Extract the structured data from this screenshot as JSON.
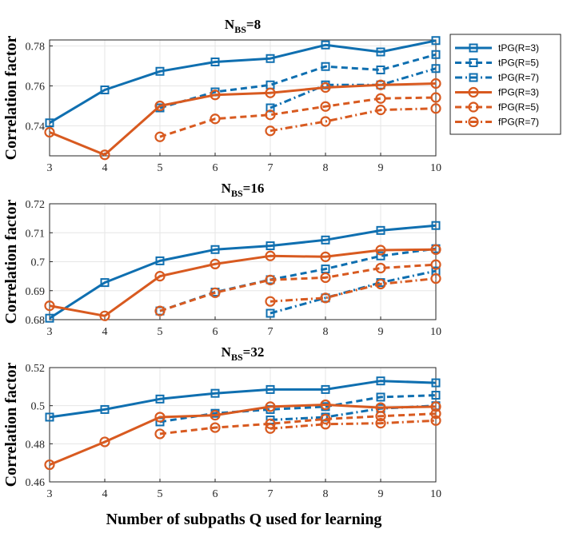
{
  "colors": {
    "tPG": "#0f6fb0",
    "fPG": "#d85a20",
    "grid": "#e6e6e6",
    "axis": "#262626"
  },
  "legend": {
    "placement": "right",
    "entries": [
      {
        "label": "tPG(R=3)",
        "family": "tPG",
        "style": "solid",
        "marker": "square"
      },
      {
        "label": "tPG(R=5)",
        "family": "tPG",
        "style": "dashed",
        "marker": "square"
      },
      {
        "label": "tPG(R=7)",
        "family": "tPG",
        "style": "dashdot",
        "marker": "square"
      },
      {
        "label": "fPG(R=3)",
        "family": "fPG",
        "style": "solid",
        "marker": "circle"
      },
      {
        "label": "fPG(R=5)",
        "family": "fPG",
        "style": "dashed",
        "marker": "circle"
      },
      {
        "label": "fPG(R=7)",
        "family": "fPG",
        "style": "dashdot",
        "marker": "circle"
      }
    ]
  },
  "shared_xlabel": "Number of subpaths Q used for learning",
  "chart_data": [
    {
      "type": "line",
      "title_main": "N",
      "title_sub": "BS",
      "title_rest": "=8",
      "ylabel": "Correlation factor",
      "xlabel": "",
      "xlim": [
        3,
        10
      ],
      "ylim": [
        0.725,
        0.783
      ],
      "xticks": [
        "3",
        "4",
        "5",
        "6",
        "7",
        "8",
        "9",
        "10"
      ],
      "yticks": [
        0.74,
        0.76,
        0.78
      ],
      "ytick_labels": [
        "0.74",
        "0.76",
        "0.78"
      ],
      "grid": true,
      "series": [
        {
          "name": "tPG(R=3)",
          "x": [
            3,
            4,
            5,
            6,
            7,
            8,
            9,
            10
          ],
          "values": [
            0.7415,
            0.758,
            0.7673,
            0.772,
            0.7737,
            0.7805,
            0.777,
            0.7827
          ]
        },
        {
          "name": "tPG(R=5)",
          "x": [
            5,
            6,
            7,
            8,
            9,
            10
          ],
          "values": [
            0.749,
            0.757,
            0.7605,
            0.7697,
            0.768,
            0.7757
          ]
        },
        {
          "name": "tPG(R=7)",
          "x": [
            7,
            8,
            9,
            10
          ],
          "values": [
            0.749,
            0.7605,
            0.7605,
            0.7687
          ]
        },
        {
          "name": "fPG(R=3)",
          "x": [
            3,
            4,
            5,
            6,
            7,
            8,
            9,
            10
          ],
          "values": [
            0.7368,
            0.7255,
            0.75,
            0.7555,
            0.7565,
            0.7592,
            0.7605,
            0.7612
          ]
        },
        {
          "name": "fPG(R=5)",
          "x": [
            5,
            6,
            7,
            8,
            9,
            10
          ],
          "values": [
            0.7345,
            0.7435,
            0.7455,
            0.7497,
            0.7537,
            0.7542
          ]
        },
        {
          "name": "fPG(R=7)",
          "x": [
            7,
            8,
            9,
            10
          ],
          "values": [
            0.7375,
            0.7422,
            0.748,
            0.7487
          ]
        }
      ]
    },
    {
      "type": "line",
      "title_main": "N",
      "title_sub": "BS",
      "title_rest": "=16",
      "ylabel": "Correlation factor",
      "xlabel": "",
      "xlim": [
        3,
        10
      ],
      "ylim": [
        0.68,
        0.72
      ],
      "xticks": [
        "3",
        "4",
        "5",
        "6",
        "7",
        "8",
        "9",
        "10"
      ],
      "yticks": [
        0.68,
        0.69,
        0.7,
        0.71,
        0.72
      ],
      "ytick_labels": [
        "0.68",
        "0.69",
        "0.7",
        "0.71",
        "0.72"
      ],
      "grid": true,
      "series": [
        {
          "name": "tPG(R=3)",
          "x": [
            3,
            4,
            5,
            6,
            7,
            8,
            9,
            10
          ],
          "values": [
            0.6805,
            0.6928,
            0.7003,
            0.7042,
            0.7055,
            0.7075,
            0.7108,
            0.7125
          ]
        },
        {
          "name": "tPG(R=5)",
          "x": [
            5,
            6,
            7,
            8,
            9,
            10
          ],
          "values": [
            0.683,
            0.6895,
            0.6938,
            0.6975,
            0.702,
            0.7045
          ]
        },
        {
          "name": "tPG(R=7)",
          "x": [
            7,
            8,
            9,
            10
          ],
          "values": [
            0.6822,
            0.6875,
            0.6928,
            0.6968
          ]
        },
        {
          "name": "fPG(R=3)",
          "x": [
            3,
            4,
            5,
            6,
            7,
            8,
            9,
            10
          ],
          "values": [
            0.6848,
            0.6813,
            0.695,
            0.6992,
            0.702,
            0.7017,
            0.704,
            0.7042
          ]
        },
        {
          "name": "fPG(R=5)",
          "x": [
            5,
            6,
            7,
            8,
            9,
            10
          ],
          "values": [
            0.683,
            0.6893,
            0.6937,
            0.6945,
            0.6978,
            0.699
          ]
        },
        {
          "name": "fPG(R=7)",
          "x": [
            7,
            8,
            9,
            10
          ],
          "values": [
            0.6863,
            0.6875,
            0.6923,
            0.6942
          ]
        }
      ]
    },
    {
      "type": "line",
      "title_main": "N",
      "title_sub": "BS",
      "title_rest": "=32",
      "ylabel": "Correlation factor",
      "xlabel": "Number of subpaths Q used for learning",
      "xlim": [
        3,
        10
      ],
      "ylim": [
        0.46,
        0.52
      ],
      "xticks": [
        "3",
        "4",
        "5",
        "6",
        "7",
        "8",
        "9",
        "10"
      ],
      "yticks": [
        0.46,
        0.48,
        0.5,
        0.52
      ],
      "ytick_labels": [
        "0.46",
        "0.48",
        "0.5",
        "0.52"
      ],
      "grid": true,
      "series": [
        {
          "name": "tPG(R=3)",
          "x": [
            3,
            4,
            5,
            6,
            7,
            8,
            9,
            10
          ],
          "values": [
            0.494,
            0.498,
            0.5035,
            0.5065,
            0.5085,
            0.5085,
            0.513,
            0.512
          ]
        },
        {
          "name": "tPG(R=5)",
          "x": [
            5,
            6,
            7,
            8,
            9,
            10
          ],
          "values": [
            0.4915,
            0.496,
            0.498,
            0.4995,
            0.5045,
            0.5055
          ]
        },
        {
          "name": "tPG(R=7)",
          "x": [
            7,
            8,
            9,
            10
          ],
          "values": [
            0.4925,
            0.494,
            0.4985,
            0.5
          ]
        },
        {
          "name": "fPG(R=3)",
          "x": [
            3,
            4,
            5,
            6,
            7,
            8,
            9,
            10
          ],
          "values": [
            0.469,
            0.481,
            0.494,
            0.495,
            0.4995,
            0.5005,
            0.499,
            0.4995
          ]
        },
        {
          "name": "fPG(R=5)",
          "x": [
            5,
            6,
            7,
            8,
            9,
            10
          ],
          "values": [
            0.4852,
            0.4885,
            0.4905,
            0.493,
            0.4945,
            0.4958
          ]
        },
        {
          "name": "fPG(R=7)",
          "x": [
            7,
            8,
            9,
            10
          ],
          "values": [
            0.488,
            0.4903,
            0.4908,
            0.4922
          ]
        }
      ]
    }
  ]
}
